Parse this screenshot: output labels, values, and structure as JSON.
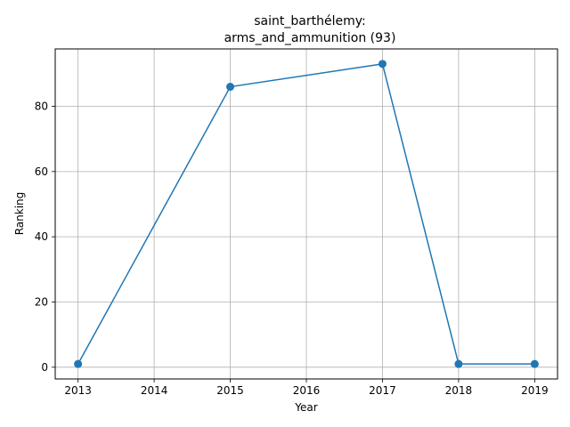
{
  "chart_data": {
    "type": "line",
    "title_line1": "saint_barthélemy:",
    "title_line2": "arms_and_ammunition (93)",
    "xlabel": "Year",
    "ylabel": "Ranking",
    "x": [
      2013,
      2015,
      2017,
      2018,
      2019
    ],
    "values": [
      1,
      86,
      93,
      1,
      1
    ],
    "xticks": [
      2013,
      2014,
      2015,
      2016,
      2017,
      2018,
      2019
    ],
    "yticks": [
      0,
      20,
      40,
      60,
      80
    ],
    "xlim": [
      2012.7,
      2019.3
    ],
    "ylim": [
      -3.6,
      97.6
    ],
    "grid": true,
    "line_color": "#1f77b4"
  }
}
